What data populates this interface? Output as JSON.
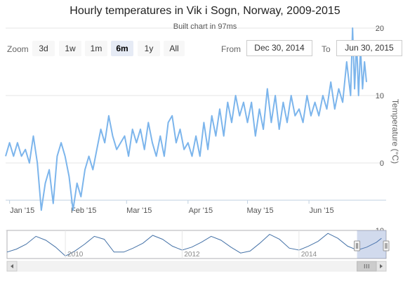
{
  "title": "Hourly temperatures in Vik i Sogn, Norway, 2009-2015",
  "subtitle": "Built chart in 97ms",
  "range_selector": {
    "zoom_label": "Zoom",
    "buttons": [
      "3d",
      "1w",
      "1m",
      "6m",
      "1y",
      "All"
    ],
    "selected": "6m",
    "from_label": "From",
    "from_value": "Dec 30, 2014",
    "to_label": "To",
    "to_value": "Jun 30, 2015"
  },
  "colors": {
    "series": "#7cb5ec",
    "navigator_series": "#4572a7",
    "navigator_mask": "rgba(102,133,194,0.3)",
    "grid": "#e6e6e6"
  },
  "chart_data": {
    "type": "line",
    "ylabel": "Temperature (°C)",
    "y_ticks": [
      20,
      10,
      0,
      -10
    ],
    "ylim": [
      -10,
      20
    ],
    "x_range": [
      "2014-12-30",
      "2015-06-30"
    ],
    "x_ticks": [
      "Jan '15",
      "Feb '15",
      "Mar '15",
      "Apr '15",
      "May '15",
      "Jun '15"
    ],
    "y_axis_position": "right",
    "gridlines": true,
    "series": [
      {
        "values": [
          {
            "x": "2014-12-30",
            "y": 1
          },
          {
            "x": "2015-01-01",
            "y": 3
          },
          {
            "x": "2015-01-03",
            "y": 1
          },
          {
            "x": "2015-01-05",
            "y": 3
          },
          {
            "x": "2015-01-07",
            "y": 1
          },
          {
            "x": "2015-01-09",
            "y": 2
          },
          {
            "x": "2015-01-11",
            "y": 0
          },
          {
            "x": "2015-01-13",
            "y": 4
          },
          {
            "x": "2015-01-15",
            "y": 0
          },
          {
            "x": "2015-01-17",
            "y": -7
          },
          {
            "x": "2015-01-19",
            "y": -3
          },
          {
            "x": "2015-01-21",
            "y": -1
          },
          {
            "x": "2015-01-23",
            "y": -6
          },
          {
            "x": "2015-01-25",
            "y": 1
          },
          {
            "x": "2015-01-27",
            "y": 3
          },
          {
            "x": "2015-01-29",
            "y": 1
          },
          {
            "x": "2015-01-31",
            "y": -2
          },
          {
            "x": "2015-02-02",
            "y": -7
          },
          {
            "x": "2015-02-04",
            "y": -3
          },
          {
            "x": "2015-02-06",
            "y": -5
          },
          {
            "x": "2015-02-08",
            "y": -1
          },
          {
            "x": "2015-02-10",
            "y": 1
          },
          {
            "x": "2015-02-12",
            "y": -1
          },
          {
            "x": "2015-02-14",
            "y": 2
          },
          {
            "x": "2015-02-16",
            "y": 5
          },
          {
            "x": "2015-02-18",
            "y": 3
          },
          {
            "x": "2015-02-20",
            "y": 7
          },
          {
            "x": "2015-02-22",
            "y": 4
          },
          {
            "x": "2015-02-24",
            "y": 2
          },
          {
            "x": "2015-02-26",
            "y": 3
          },
          {
            "x": "2015-02-28",
            "y": 4
          },
          {
            "x": "2015-03-02",
            "y": 1
          },
          {
            "x": "2015-03-04",
            "y": 5
          },
          {
            "x": "2015-03-06",
            "y": 3
          },
          {
            "x": "2015-03-08",
            "y": 5
          },
          {
            "x": "2015-03-10",
            "y": 2
          },
          {
            "x": "2015-03-12",
            "y": 6
          },
          {
            "x": "2015-03-14",
            "y": 3
          },
          {
            "x": "2015-03-16",
            "y": 1
          },
          {
            "x": "2015-03-18",
            "y": 4
          },
          {
            "x": "2015-03-20",
            "y": 1
          },
          {
            "x": "2015-03-22",
            "y": 6
          },
          {
            "x": "2015-03-24",
            "y": 7
          },
          {
            "x": "2015-03-26",
            "y": 3
          },
          {
            "x": "2015-03-28",
            "y": 5
          },
          {
            "x": "2015-03-30",
            "y": 2
          },
          {
            "x": "2015-04-01",
            "y": 3
          },
          {
            "x": "2015-04-03",
            "y": 1
          },
          {
            "x": "2015-04-05",
            "y": 4
          },
          {
            "x": "2015-04-07",
            "y": 1
          },
          {
            "x": "2015-04-09",
            "y": 6
          },
          {
            "x": "2015-04-11",
            "y": 2
          },
          {
            "x": "2015-04-13",
            "y": 7
          },
          {
            "x": "2015-04-15",
            "y": 4
          },
          {
            "x": "2015-04-17",
            "y": 8
          },
          {
            "x": "2015-04-19",
            "y": 4
          },
          {
            "x": "2015-04-21",
            "y": 9
          },
          {
            "x": "2015-04-23",
            "y": 6
          },
          {
            "x": "2015-04-25",
            "y": 10
          },
          {
            "x": "2015-04-27",
            "y": 7
          },
          {
            "x": "2015-04-29",
            "y": 9
          },
          {
            "x": "2015-05-01",
            "y": 6
          },
          {
            "x": "2015-05-03",
            "y": 9
          },
          {
            "x": "2015-05-05",
            "y": 4
          },
          {
            "x": "2015-05-07",
            "y": 8
          },
          {
            "x": "2015-05-09",
            "y": 5
          },
          {
            "x": "2015-05-11",
            "y": 11
          },
          {
            "x": "2015-05-13",
            "y": 6
          },
          {
            "x": "2015-05-15",
            "y": 10
          },
          {
            "x": "2015-05-17",
            "y": 5
          },
          {
            "x": "2015-05-19",
            "y": 9
          },
          {
            "x": "2015-05-21",
            "y": 6
          },
          {
            "x": "2015-05-23",
            "y": 10
          },
          {
            "x": "2015-05-25",
            "y": 7
          },
          {
            "x": "2015-05-27",
            "y": 8
          },
          {
            "x": "2015-05-29",
            "y": 6
          },
          {
            "x": "2015-05-31",
            "y": 10
          },
          {
            "x": "2015-06-02",
            "y": 7
          },
          {
            "x": "2015-06-04",
            "y": 9
          },
          {
            "x": "2015-06-06",
            "y": 7
          },
          {
            "x": "2015-06-08",
            "y": 10
          },
          {
            "x": "2015-06-10",
            "y": 8
          },
          {
            "x": "2015-06-12",
            "y": 12
          },
          {
            "x": "2015-06-14",
            "y": 8
          },
          {
            "x": "2015-06-16",
            "y": 11
          },
          {
            "x": "2015-06-18",
            "y": 9
          },
          {
            "x": "2015-06-20",
            "y": 15
          },
          {
            "x": "2015-06-22",
            "y": 10
          },
          {
            "x": "2015-06-23",
            "y": 20
          },
          {
            "x": "2015-06-24",
            "y": 11
          },
          {
            "x": "2015-06-25",
            "y": 18
          },
          {
            "x": "2015-06-26",
            "y": 10
          },
          {
            "x": "2015-06-27",
            "y": 17
          },
          {
            "x": "2015-06-28",
            "y": 11
          },
          {
            "x": "2015-06-29",
            "y": 15
          },
          {
            "x": "2015-06-30",
            "y": 12
          }
        ]
      }
    ]
  },
  "navigator": {
    "x_ticks": [
      "2010",
      "2012",
      "2014"
    ],
    "x_range": [
      "2009-01-01",
      "2015-06-30"
    ],
    "selection": [
      "2014-12-30",
      "2015-06-30"
    ],
    "values": [
      {
        "x": "2009-01",
        "y": -2
      },
      {
        "x": "2009-03",
        "y": 1
      },
      {
        "x": "2009-05",
        "y": 6
      },
      {
        "x": "2009-07",
        "y": 14
      },
      {
        "x": "2009-09",
        "y": 10
      },
      {
        "x": "2009-11",
        "y": 3
      },
      {
        "x": "2010-01",
        "y": -6
      },
      {
        "x": "2010-03",
        "y": -1
      },
      {
        "x": "2010-05",
        "y": 6
      },
      {
        "x": "2010-07",
        "y": 14
      },
      {
        "x": "2010-09",
        "y": 11
      },
      {
        "x": "2010-11",
        "y": -2
      },
      {
        "x": "2011-01",
        "y": -2
      },
      {
        "x": "2011-03",
        "y": 2
      },
      {
        "x": "2011-05",
        "y": 7
      },
      {
        "x": "2011-07",
        "y": 15
      },
      {
        "x": "2011-09",
        "y": 11
      },
      {
        "x": "2011-11",
        "y": 4
      },
      {
        "x": "2012-01",
        "y": 0
      },
      {
        "x": "2012-03",
        "y": 3
      },
      {
        "x": "2012-05",
        "y": 8
      },
      {
        "x": "2012-07",
        "y": 14
      },
      {
        "x": "2012-09",
        "y": 10
      },
      {
        "x": "2012-11",
        "y": 3
      },
      {
        "x": "2013-01",
        "y": -3
      },
      {
        "x": "2013-03",
        "y": -1
      },
      {
        "x": "2013-05",
        "y": 7
      },
      {
        "x": "2013-07",
        "y": 16
      },
      {
        "x": "2013-09",
        "y": 11
      },
      {
        "x": "2013-11",
        "y": 2
      },
      {
        "x": "2014-01",
        "y": 0
      },
      {
        "x": "2014-03",
        "y": 4
      },
      {
        "x": "2014-05",
        "y": 9
      },
      {
        "x": "2014-07",
        "y": 17
      },
      {
        "x": "2014-09",
        "y": 12
      },
      {
        "x": "2014-11",
        "y": 4
      },
      {
        "x": "2015-01",
        "y": 0
      },
      {
        "x": "2015-03",
        "y": 3
      },
      {
        "x": "2015-05",
        "y": 8
      },
      {
        "x": "2015-06",
        "y": 12
      }
    ]
  }
}
